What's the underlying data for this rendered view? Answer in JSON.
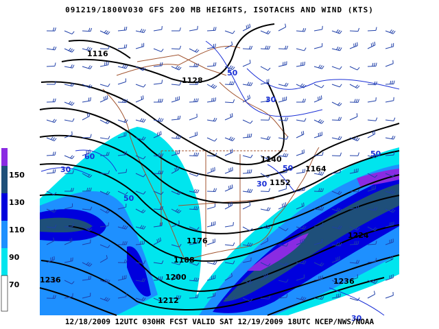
{
  "title": "091219/1800V030 GFS 200 MB  HEIGHTS, ISOTACHS AND WIND (KTS)",
  "footer": "12/18/2009 12UTC 030HR FCST VALID SAT 12/19/2009 18UTC  NCEP/NWS/NOAA",
  "legend": {
    "labels": [
      "150",
      "130",
      "110",
      "90",
      "70"
    ],
    "colors": [
      "#8a2be2",
      "#1e4f7a",
      "#0000dd",
      "#1e90ff",
      "#00e5ee",
      "#ffffff"
    ]
  },
  "height_labels": [
    "1116",
    "1128",
    "1140",
    "1164",
    "1152",
    "1176",
    "1188",
    "1200",
    "1212",
    "1224",
    "1236",
    "1236"
  ],
  "isotach_labels": [
    "50",
    "30",
    "60",
    "30",
    "50",
    "50",
    "30",
    "50",
    "30"
  ],
  "colors": {
    "fill_90": "#00e5ee",
    "fill_110": "#1e90ff",
    "fill_130": "#0000dd",
    "fill_150": "#1e4f7a",
    "fill_max": "#8a2be2",
    "coast": "#a0522d",
    "height_contour": "#000000",
    "isotach_line": "#1a2fd6",
    "barb": "#1f3fa8"
  }
}
